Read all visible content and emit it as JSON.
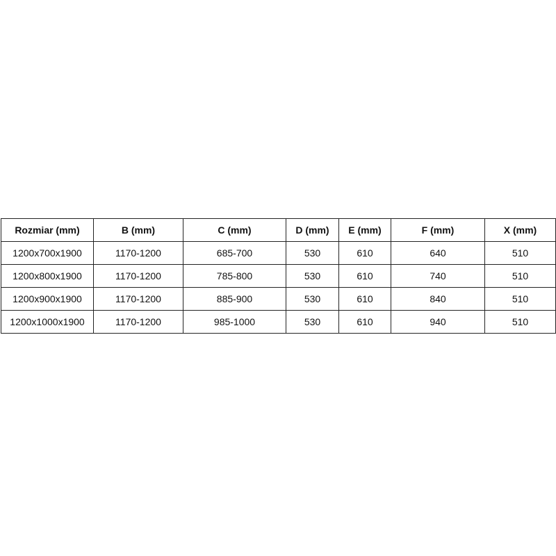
{
  "table": {
    "headers": [
      "Rozmiar (mm)",
      "B (mm)",
      "C (mm)",
      "D (mm)",
      "E (mm)",
      "F (mm)",
      "X (mm)"
    ],
    "rows": [
      [
        "1200x700x1900",
        "1170-1200",
        "685-700",
        "530",
        "610",
        "640",
        "510"
      ],
      [
        "1200x800x1900",
        "1170-1200",
        "785-800",
        "530",
        "610",
        "740",
        "510"
      ],
      [
        "1200x900x1900",
        "1170-1200",
        "885-900",
        "530",
        "610",
        "840",
        "510"
      ],
      [
        "1200x1000x1900",
        "1170-1200",
        "985-1000",
        "530",
        "610",
        "940",
        "510"
      ]
    ]
  }
}
